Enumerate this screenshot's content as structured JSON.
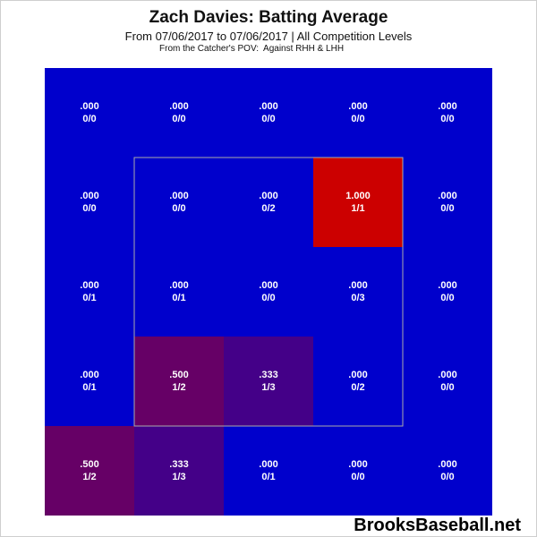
{
  "title": "Zach Davies: Batting Average",
  "subtitle": "From 07/06/2017 to 07/06/2017 | All Competition Levels",
  "note": "From the Catcher's POV:  Against RHH & LHH",
  "watermark": "BrooksBaseball.net",
  "colors": {
    "zero": "#0000cc",
    "max": "#cc0000",
    "strike_zone_outline": "#aaaaaa"
  },
  "chart_data": {
    "type": "heatmap",
    "title": "Zach Davies: Batting Average",
    "rows": 5,
    "cols": 5,
    "cells": [
      [
        {
          "avg": ".000",
          "hits": 0,
          "ab": 0
        },
        {
          "avg": ".000",
          "hits": 0,
          "ab": 0
        },
        {
          "avg": ".000",
          "hits": 0,
          "ab": 0
        },
        {
          "avg": ".000",
          "hits": 0,
          "ab": 0
        },
        {
          "avg": ".000",
          "hits": 0,
          "ab": 0
        }
      ],
      [
        {
          "avg": ".000",
          "hits": 0,
          "ab": 0
        },
        {
          "avg": ".000",
          "hits": 0,
          "ab": 0
        },
        {
          "avg": ".000",
          "hits": 0,
          "ab": 2
        },
        {
          "avg": "1.000",
          "hits": 1,
          "ab": 1
        },
        {
          "avg": ".000",
          "hits": 0,
          "ab": 0
        }
      ],
      [
        {
          "avg": ".000",
          "hits": 0,
          "ab": 1
        },
        {
          "avg": ".000",
          "hits": 0,
          "ab": 1
        },
        {
          "avg": ".000",
          "hits": 0,
          "ab": 0
        },
        {
          "avg": ".000",
          "hits": 0,
          "ab": 3
        },
        {
          "avg": ".000",
          "hits": 0,
          "ab": 0
        }
      ],
      [
        {
          "avg": ".000",
          "hits": 0,
          "ab": 1
        },
        {
          "avg": ".500",
          "hits": 1,
          "ab": 2
        },
        {
          "avg": ".333",
          "hits": 1,
          "ab": 3
        },
        {
          "avg": ".000",
          "hits": 0,
          "ab": 2
        },
        {
          "avg": ".000",
          "hits": 0,
          "ab": 0
        }
      ],
      [
        {
          "avg": ".500",
          "hits": 1,
          "ab": 2
        },
        {
          "avg": ".333",
          "hits": 1,
          "ab": 3
        },
        {
          "avg": ".000",
          "hits": 0,
          "ab": 1
        },
        {
          "avg": ".000",
          "hits": 0,
          "ab": 0
        },
        {
          "avg": ".000",
          "hits": 0,
          "ab": 0
        }
      ]
    ],
    "strike_zone": {
      "row_start": 1,
      "row_end": 3,
      "col_start": 1,
      "col_end": 3
    }
  }
}
